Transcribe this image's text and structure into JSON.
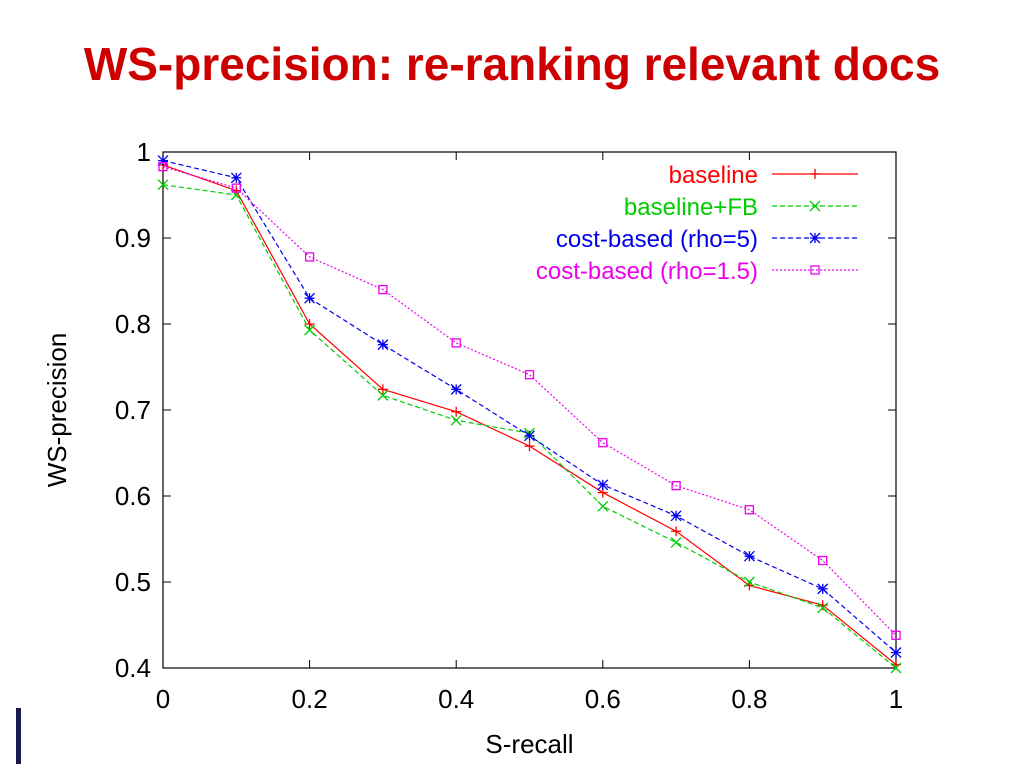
{
  "slide": {
    "title": "WS-precision: re-ranking relevant docs"
  },
  "chart_data": {
    "type": "line",
    "title": "",
    "xlabel": "S-recall",
    "ylabel": "WS-precision",
    "xlim": [
      0,
      1
    ],
    "ylim": [
      0.4,
      1
    ],
    "xticks": [
      0,
      0.2,
      0.4,
      0.6,
      0.8,
      1
    ],
    "xtick_labels": [
      "0",
      "0.2",
      "0.4",
      "0.6",
      "0.8",
      "1"
    ],
    "yticks": [
      0.4,
      0.5,
      0.6,
      0.7,
      0.8,
      0.9,
      1
    ],
    "ytick_labels": [
      "0.4",
      "0.5",
      "0.6",
      "0.7",
      "0.8",
      "0.9",
      "1"
    ],
    "grid": false,
    "legend_position": "top-right",
    "x": [
      0,
      0.1,
      0.2,
      0.3,
      0.4,
      0.5,
      0.6,
      0.7,
      0.8,
      0.9,
      1.0
    ],
    "series": [
      {
        "name": "baseline",
        "color": "#ff0000",
        "marker": "plus",
        "line": "solid",
        "values": [
          0.985,
          0.955,
          0.8,
          0.724,
          0.698,
          0.658,
          0.604,
          0.559,
          0.496,
          0.473,
          0.404
        ]
      },
      {
        "name": "baseline+FB",
        "color": "#00cc00",
        "marker": "cross",
        "line": "dashed",
        "values": [
          0.962,
          0.95,
          0.793,
          0.717,
          0.688,
          0.673,
          0.588,
          0.546,
          0.5,
          0.47,
          0.4
        ]
      },
      {
        "name": "cost-based (rho=5)",
        "color": "#0000ee",
        "marker": "star",
        "line": "dashed",
        "values": [
          0.99,
          0.97,
          0.83,
          0.776,
          0.724,
          0.67,
          0.613,
          0.577,
          0.53,
          0.492,
          0.418
        ]
      },
      {
        "name": "cost-based (rho=1.5)",
        "color": "#ee00ee",
        "marker": "square",
        "line": "dotted",
        "values": [
          0.983,
          0.958,
          0.878,
          0.84,
          0.778,
          0.741,
          0.662,
          0.612,
          0.584,
          0.525,
          0.438
        ]
      }
    ]
  }
}
